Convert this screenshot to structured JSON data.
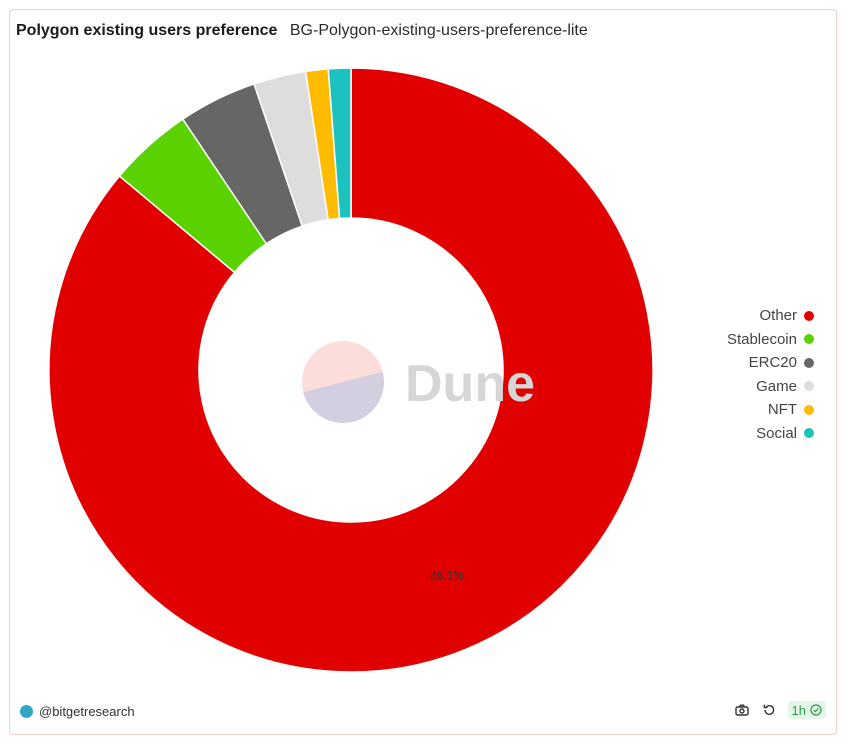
{
  "header": {
    "title": "Polygon existing users preference",
    "subtitle": "BG-Polygon-existing-users-preference-lite"
  },
  "watermark": {
    "text": "Dune"
  },
  "footer": {
    "user": "@bitgetresearch",
    "refresh_label": "1h",
    "icons": [
      "camera-icon",
      "refresh-icon",
      "check-circle-icon"
    ]
  },
  "chart_data": {
    "type": "pie",
    "donut": true,
    "labels": [
      "Other",
      "Stablecoin",
      "ERC20",
      "Game",
      "NFT",
      "Social"
    ],
    "values": [
      86.1,
      4.5,
      4.2,
      2.8,
      1.2,
      1.2
    ],
    "colors": [
      "#e00000",
      "#5ad100",
      "#666666",
      "#dddddd",
      "#ffbb00",
      "#1cc2bd"
    ],
    "data_labels": [
      "86.1%",
      "",
      "",
      "",
      "",
      ""
    ],
    "legend_position": "right",
    "direction": "clockwise",
    "start_angle": "top"
  }
}
